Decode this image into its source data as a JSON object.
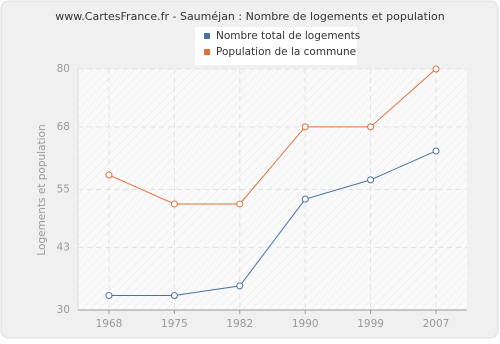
{
  "chart_data": {
    "type": "line",
    "title": "www.CartesFrance.fr - Sauméjan : Nombre de logements et population",
    "y_label": "Logements et population",
    "categories": [
      "1968",
      "1975",
      "1982",
      "1990",
      "1999",
      "2007"
    ],
    "series": [
      {
        "name": "Nombre total de logements",
        "color": "#4a72a6",
        "values": [
          33,
          33,
          35,
          53,
          57,
          63
        ]
      },
      {
        "name": "Population de la commune",
        "color": "#e0703a",
        "values": [
          58,
          52,
          52,
          68,
          68,
          80
        ]
      }
    ],
    "ylim": [
      30,
      80
    ],
    "yticks": [
      30,
      43,
      55,
      68,
      80
    ],
    "grid": true
  }
}
